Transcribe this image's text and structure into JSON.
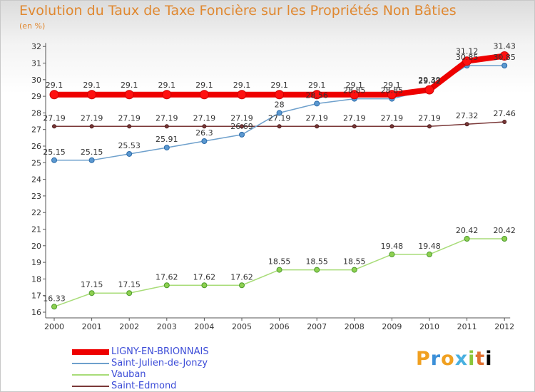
{
  "chart_data": {
    "type": "line",
    "title": "Evolution du Taux de Taxe Foncière sur les Propriétés Non Bâties",
    "subtitle": "(en %)",
    "x": [
      "2000",
      "2001",
      "2002",
      "2003",
      "2004",
      "2005",
      "2006",
      "2007",
      "2008",
      "2009",
      "2010",
      "2011",
      "2012"
    ],
    "ylim": [
      16,
      32
    ],
    "yticks": [
      16,
      17,
      18,
      19,
      20,
      21,
      22,
      23,
      24,
      25,
      26,
      27,
      28,
      29,
      30,
      31,
      32
    ],
    "grid": false,
    "legend_position": "bottom-left",
    "series": [
      {
        "name": "LIGNY-EN-BRIONNAIS",
        "color": "#ee0000",
        "values": [
          29.1,
          29.1,
          29.1,
          29.1,
          29.1,
          29.1,
          29.1,
          29.1,
          29.1,
          29.1,
          29.39,
          31.12,
          31.43
        ],
        "labels": [
          "29.1",
          "29.1",
          "29.1",
          "29.1",
          "29.1",
          "29.1",
          "29.1",
          "29.1",
          "29.1",
          "29.1",
          "29.39",
          "31.12",
          "31.43"
        ]
      },
      {
        "name": "Saint-Julien-de-Jonzy",
        "color": "#6ea0cc",
        "values": [
          25.15,
          25.15,
          25.53,
          25.91,
          26.3,
          26.69,
          28,
          28.56,
          28.85,
          28.85,
          29.42,
          30.85,
          30.85
        ],
        "labels": [
          "25.15",
          "25.15",
          "25.53",
          "25.91",
          "26.3",
          "26.69",
          "28",
          "28.56",
          "28.85",
          "28.85",
          "29.42",
          "30.85",
          "30.85"
        ]
      },
      {
        "name": "Vauban",
        "color": "#a8dc78",
        "values": [
          16.33,
          17.15,
          17.15,
          17.62,
          17.62,
          17.62,
          18.55,
          18.55,
          18.55,
          19.48,
          19.48,
          20.42,
          20.42
        ],
        "labels": [
          "16.33",
          "17.15",
          "17.15",
          "17.62",
          "17.62",
          "17.62",
          "18.55",
          "18.55",
          "18.55",
          "19.48",
          "19.48",
          "20.42",
          "20.42"
        ]
      },
      {
        "name": "Saint-Edmond",
        "color": "#7a3838",
        "values": [
          27.19,
          27.19,
          27.19,
          27.19,
          27.19,
          27.19,
          27.19,
          27.19,
          27.19,
          27.19,
          27.19,
          27.32,
          27.46
        ],
        "labels": [
          "27.19",
          "27.19",
          "27.19",
          "27.19",
          "27.19",
          "27.19",
          "27.19",
          "27.19",
          "27.19",
          "27.19",
          "27.19",
          "27.32",
          "27.46"
        ]
      }
    ]
  },
  "logo": {
    "letters": [
      "P",
      "r",
      "o",
      "x",
      "i",
      "t",
      "i"
    ]
  }
}
